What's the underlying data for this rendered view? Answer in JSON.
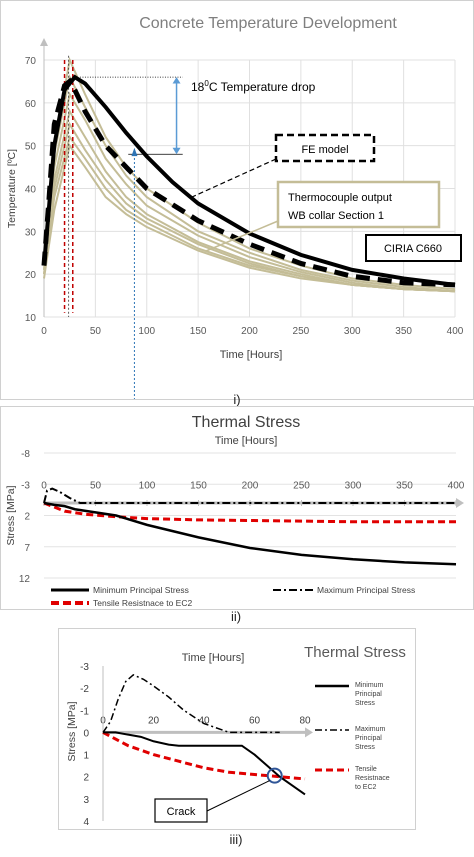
{
  "panels": {
    "p1": {
      "label": "i)",
      "chart_data": {
        "type": "line",
        "title": "Concrete Temperature Development",
        "xlabel": "Time [Hours]",
        "ylabel": "Temperature [ºC]",
        "xlim": [
          0,
          400
        ],
        "ylim": [
          10,
          70
        ],
        "xticks": [
          "0",
          "50",
          "100",
          "150",
          "200",
          "250",
          "300",
          "350",
          "400"
        ],
        "yticks": [
          "10",
          "20",
          "30",
          "40",
          "50",
          "60",
          "70"
        ],
        "series": [
          {
            "name": "CIRIA C660",
            "x": [
              0,
              10,
              20,
              30,
              40,
              60,
              80,
              100,
              125,
              150,
              200,
              250,
              300,
              350,
              400
            ],
            "y": [
              22,
              50,
              63,
              66,
              64.5,
              59,
              53,
              47.5,
              41.5,
              36.5,
              29.5,
              24.5,
              21,
              19,
              17.5
            ]
          },
          {
            "name": "FE model",
            "x": [
              0,
              5,
              10,
              20,
              25,
              30,
              40,
              60,
              80,
              100,
              150,
              200,
              250,
              300,
              350,
              400
            ],
            "y": [
              22,
              38,
              55,
              64,
              65,
              63,
              58,
              50,
              45,
              40,
              32.5,
              27,
              22.5,
              19.5,
              18,
              17.5
            ]
          },
          {
            "name": "Thermocouple output WB collar Section 1",
            "x": [
              0,
              10,
              25,
              40,
              60,
              80,
              100,
              150,
              200,
              250,
              300,
              350,
              400
            ],
            "y": [
              22,
              50,
              70,
              62,
              52,
              45,
              40,
              32,
              26,
              22,
              19,
              17.5,
              16.5
            ]
          },
          {
            "x": [
              0,
              10,
              25,
              40,
              60,
              80,
              100,
              150,
              200,
              250,
              300,
              350,
              400
            ],
            "y": [
              22,
              48,
              66,
              59,
              50,
              43,
              38,
              30,
              25,
              21,
              18.5,
              17,
              16
            ]
          },
          {
            "x": [
              0,
              10,
              25,
              40,
              60,
              80,
              100,
              150,
              200,
              250,
              300,
              350,
              400
            ],
            "y": [
              21,
              45,
              62,
              56,
              47,
              41,
              36,
              29,
              24,
              20.5,
              18,
              16.5,
              16
            ]
          },
          {
            "x": [
              0,
              10,
              25,
              40,
              60,
              80,
              100,
              150,
              200,
              250,
              300,
              350,
              400
            ],
            "y": [
              21,
              42,
              58,
              52,
              44,
              38,
              34,
              27.5,
              23,
              20,
              17.5,
              16.5,
              16
            ]
          },
          {
            "x": [
              0,
              10,
              25,
              40,
              60,
              80,
              100,
              150,
              200,
              250,
              300,
              350,
              400
            ],
            "y": [
              20,
              40,
              55,
              49,
              42,
              36.5,
              33,
              27,
              22.5,
              19.5,
              17.5,
              16.5,
              16
            ]
          },
          {
            "x": [
              0,
              10,
              25,
              40,
              60,
              80,
              100,
              150,
              200,
              250,
              300,
              350,
              400
            ],
            "y": [
              20,
              38,
              52,
              47,
              40,
              35,
              32,
              26,
              22,
              19.5,
              17.5,
              16.5,
              16
            ]
          },
          {
            "x": [
              0,
              10,
              25,
              40,
              60,
              80,
              100,
              150,
              200,
              250,
              300,
              350,
              400
            ],
            "y": [
              19,
              35,
              50,
              45,
              38,
              34,
              31,
              25.5,
              21.5,
              19,
              17.5,
              16.5,
              16
            ]
          }
        ],
        "annotations": {
          "drop_text": "18",
          "drop_sup": "0",
          "drop_rest": "C Temperature drop",
          "fe_label": "FE model",
          "tc_line1": "Thermocouple output",
          "tc_line2": "WB collar Section 1",
          "ciria_label": "CIRIA C660"
        }
      }
    },
    "p2": {
      "label": "ii)",
      "chart_data": {
        "type": "line",
        "title": "Thermal Stress",
        "xlabel": "Time [Hours]",
        "ylabel": "Stress [MPa]",
        "xlim": [
          0,
          400
        ],
        "ylim": [
          12,
          -8
        ],
        "xticks": [
          "0",
          "50",
          "100",
          "150",
          "200",
          "250",
          "300",
          "350",
          "400"
        ],
        "yticks": [
          "-8",
          "-3",
          "2",
          "7",
          "12"
        ],
        "series": [
          {
            "name": "Minimum Principal Stress",
            "x": [
              0,
              10,
              20,
              30,
              50,
              70,
              100,
              150,
              200,
              250,
              300,
              350,
              400
            ],
            "y": [
              0,
              0.3,
              0.5,
              1,
              1.5,
              2,
              3.5,
              5.5,
              7.2,
              8.3,
              9,
              9.5,
              9.8
            ]
          },
          {
            "name": "Maximum Principal Stress",
            "x": [
              0,
              3,
              8,
              15,
              25,
              35,
              50,
              70,
              100,
              200,
              300,
              400
            ],
            "y": [
              0,
              -2,
              -2.3,
              -1.8,
              -0.8,
              0,
              0,
              0,
              0,
              0,
              0,
              0
            ]
          },
          {
            "name": "Tensile Resistnace to EC2",
            "x": [
              0,
              20,
              40,
              70,
              100,
              150,
              200,
              300,
              400
            ],
            "y": [
              0,
              1.3,
              1.8,
              2.2,
              2.5,
              2.7,
              2.8,
              3,
              3
            ]
          }
        ]
      }
    },
    "p3": {
      "label": "iii)",
      "chart_data": {
        "type": "line",
        "title": "Thermal Stress",
        "xlabel": "Time [Hours]",
        "ylabel": "Stress [MPa]",
        "xlim": [
          0,
          80
        ],
        "ylim": [
          4,
          -3
        ],
        "xticks": [
          "0",
          "20",
          "40",
          "60",
          "80"
        ],
        "yticks": [
          "-3",
          "-2",
          "-1",
          "0",
          "1",
          "2",
          "3",
          "4"
        ],
        "series": [
          {
            "name": "Minimum Principal Stress",
            "x": [
              0,
              5,
              10,
              15,
              20,
              22,
              24,
              26,
              30,
              40,
              50,
              55,
              60,
              65,
              70,
              75,
              80
            ],
            "y": [
              0,
              0,
              0.1,
              0.2,
              0.4,
              0.45,
              0.5,
              0.55,
              0.6,
              0.6,
              0.6,
              0.6,
              1,
              1.5,
              2,
              2.4,
              2.8
            ]
          },
          {
            "name": "Maximum Principal Stress",
            "x": [
              0,
              3,
              6,
              9,
              12,
              16,
              20,
              26,
              32,
              40,
              50,
              60,
              70
            ],
            "y": [
              0,
              -0.5,
              -1.5,
              -2.3,
              -2.6,
              -2.4,
              -2.1,
              -1.6,
              -1,
              -0.4,
              0,
              0,
              0
            ]
          },
          {
            "name": "Tensile Resistnace to EC2",
            "x": [
              0,
              5,
              10,
              20,
              30,
              40,
              50,
              60,
              70,
              80
            ],
            "y": [
              0,
              0.3,
              0.6,
              1,
              1.3,
              1.6,
              1.8,
              1.9,
              2,
              2.1
            ]
          }
        ],
        "annotations": {
          "crack_label": "Crack"
        }
      }
    }
  }
}
